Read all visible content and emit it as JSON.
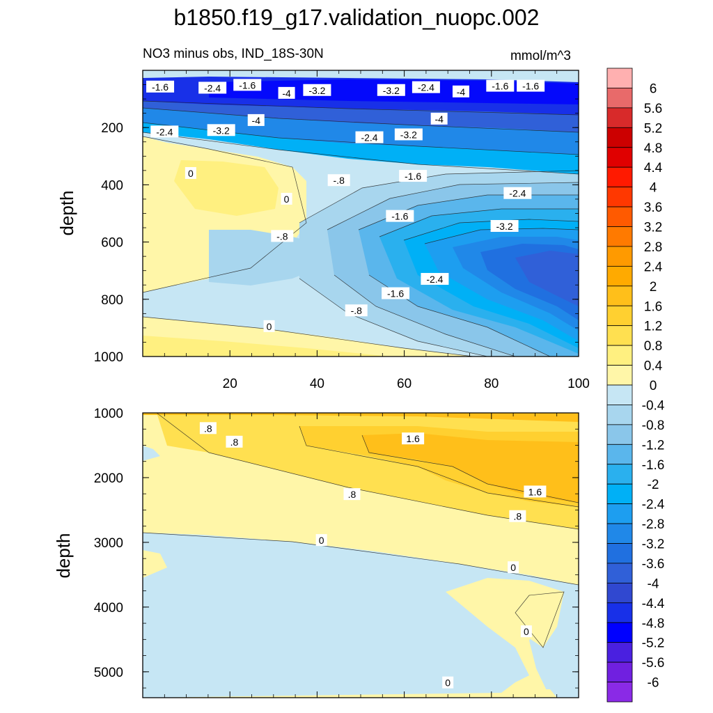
{
  "chart_data": {
    "type": "contour",
    "title": "b1850.f19_g17.validation_nuopc.002",
    "subtitle": "NO3 minus obs, IND_18S-30N",
    "units": "mmol/m^3",
    "panels": [
      {
        "name": "upper",
        "ylabel": "depth",
        "ylim": [
          0,
          1000
        ],
        "y_ticks": [
          "200",
          "400",
          "600",
          "800",
          "1000"
        ],
        "xlim": [
          0,
          100
        ],
        "x_ticks": [
          "20",
          "40",
          "60",
          "80",
          "100"
        ],
        "contour_labels": [
          {
            "text": "-1.6",
            "x": 4,
            "y": 58
          },
          {
            "text": "-2.4",
            "x": 16,
            "y": 62
          },
          {
            "text": "-1.6",
            "x": 24,
            "y": 52
          },
          {
            "text": "-4",
            "x": 33,
            "y": 80
          },
          {
            "text": "-3.2",
            "x": 40,
            "y": 70
          },
          {
            "text": "-3.2",
            "x": 57,
            "y": 70
          },
          {
            "text": "-2.4",
            "x": 65,
            "y": 60
          },
          {
            "text": "-4",
            "x": 73,
            "y": 75
          },
          {
            "text": "-1.6",
            "x": 82,
            "y": 55
          },
          {
            "text": "-1.6",
            "x": 89,
            "y": 55
          },
          {
            "text": "-2.4",
            "x": 5,
            "y": 215
          },
          {
            "text": "-3.2",
            "x": 18,
            "y": 210
          },
          {
            "text": "-4",
            "x": 26,
            "y": 175
          },
          {
            "text": "-4",
            "x": 68,
            "y": 170
          },
          {
            "text": "-3.2",
            "x": 61,
            "y": 225
          },
          {
            "text": "-2.4",
            "x": 52,
            "y": 235
          },
          {
            "text": "0",
            "x": 11,
            "y": 360
          },
          {
            "text": "0",
            "x": 33,
            "y": 450
          },
          {
            "text": "-.8",
            "x": 45,
            "y": 385
          },
          {
            "text": "-1.6",
            "x": 62,
            "y": 370
          },
          {
            "text": "-2.4",
            "x": 86,
            "y": 430
          },
          {
            "text": "-1.6",
            "x": 59,
            "y": 510
          },
          {
            "text": "-3.2",
            "x": 83,
            "y": 545
          },
          {
            "text": "-.8",
            "x": 32,
            "y": 580
          },
          {
            "text": "-2.4",
            "x": 67,
            "y": 730
          },
          {
            "text": "-1.6",
            "x": 58,
            "y": 780
          },
          {
            "text": "-.8",
            "x": 49,
            "y": 840
          },
          {
            "text": "0",
            "x": 29,
            "y": 895
          }
        ]
      },
      {
        "name": "lower",
        "ylabel": "depth",
        "ylim": [
          1000,
          5400
        ],
        "y_ticks": [
          "1000",
          "2000",
          "3000",
          "4000",
          "5000"
        ],
        "xlim": [
          0,
          100
        ],
        "contour_labels": [
          {
            "text": ".8",
            "x": 15,
            "y": 1240
          },
          {
            "text": ".8",
            "x": 21,
            "y": 1450
          },
          {
            "text": "1.6",
            "x": 62,
            "y": 1400
          },
          {
            "text": ".8",
            "x": 48,
            "y": 2260
          },
          {
            "text": "1.6",
            "x": 90,
            "y": 2220
          },
          {
            "text": ".8",
            "x": 86,
            "y": 2600
          },
          {
            "text": "0",
            "x": 41,
            "y": 2970
          },
          {
            "text": "0",
            "x": 85,
            "y": 3390
          },
          {
            "text": "0",
            "x": 88,
            "y": 4380
          },
          {
            "text": "0",
            "x": 70,
            "y": 5170
          }
        ]
      }
    ],
    "colorbar": {
      "levels": [
        "6",
        "5.6",
        "5.2",
        "4.8",
        "4.4",
        "4",
        "3.6",
        "3.2",
        "2.8",
        "2.4",
        "2",
        "1.6",
        "1.2",
        "0.8",
        "0.4",
        "0",
        "-0.4",
        "-0.8",
        "-1.2",
        "-1.6",
        "-2",
        "-2.4",
        "-2.8",
        "-3.2",
        "-3.6",
        "-4",
        "-4.4",
        "-4.8",
        "-5.2",
        "-5.6",
        "-6"
      ],
      "colors": [
        "#ffb0b0",
        "#e86a6a",
        "#d82a2a",
        "#cc0000",
        "#e00000",
        "#ff1a00",
        "#ff3800",
        "#ff5a00",
        "#ff7a00",
        "#ff9a00",
        "#ffaa00",
        "#ffbf1a",
        "#ffd030",
        "#ffe050",
        "#fff080",
        "#fff6a8",
        "#c6e6f4",
        "#a8d6ee",
        "#8ac6ea",
        "#5ab6ec",
        "#2ab0ee",
        "#00b0f6",
        "#1d9ef0",
        "#2088e8",
        "#2070e0",
        "#3060d8",
        "#3048d0",
        "#1830e8",
        "#0000ff",
        "#4a20e0",
        "#7020e0",
        "#8a2ae6"
      ]
    }
  }
}
